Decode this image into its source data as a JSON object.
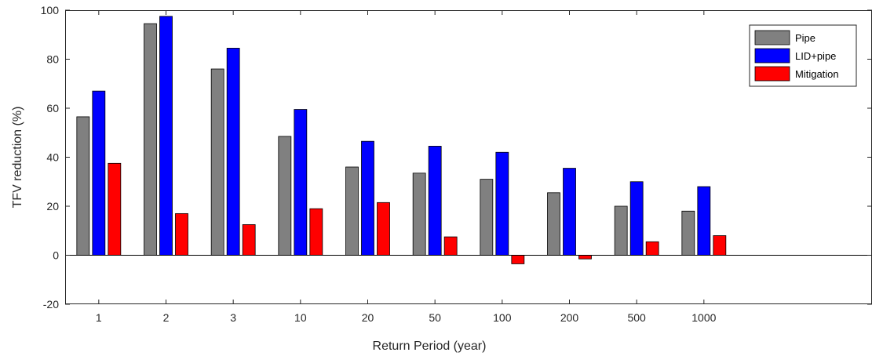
{
  "chart_data": {
    "type": "bar",
    "title": "",
    "xlabel": "Return Period (year)",
    "ylabel": "TFV reduction (%)",
    "ylim": [
      -20,
      100
    ],
    "yticks": [
      -20,
      0,
      20,
      40,
      60,
      80,
      100
    ],
    "categories": [
      "1",
      "2",
      "3",
      "10",
      "20",
      "50",
      "100",
      "200",
      "500",
      "1000"
    ],
    "extra_slots": 2,
    "grid": false,
    "legend_position": "top-right",
    "series": [
      {
        "name": "Pipe",
        "color": "#808080",
        "values": [
          56.5,
          94.5,
          76,
          48.5,
          36,
          33.5,
          31,
          25.5,
          20,
          18
        ]
      },
      {
        "name": "LID+pipe",
        "color": "#0000ff",
        "values": [
          67,
          97.5,
          84.5,
          59.5,
          46.5,
          44.5,
          42,
          35.5,
          30,
          28
        ]
      },
      {
        "name": "Mitigation",
        "color": "#ff0000",
        "values": [
          37.5,
          17,
          12.5,
          19,
          21.5,
          7.5,
          -3.5,
          -1.5,
          5.5,
          8
        ]
      }
    ]
  }
}
